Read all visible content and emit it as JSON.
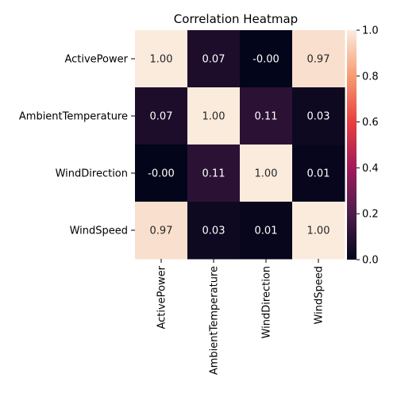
{
  "chart_data": {
    "type": "heatmap",
    "title": "Correlation Heatmap",
    "variables": [
      "ActivePower",
      "AmbientTemperature",
      "WindDirection",
      "WindSpeed"
    ],
    "values": [
      [
        1.0,
        0.07,
        -0.0,
        0.97
      ],
      [
        0.07,
        1.0,
        0.11,
        0.03
      ],
      [
        -0.0,
        0.11,
        1.0,
        0.01
      ],
      [
        0.97,
        0.03,
        0.01,
        1.0
      ]
    ],
    "annotations": [
      [
        "1.00",
        "0.07",
        "-0.00",
        "0.97"
      ],
      [
        "0.07",
        "1.00",
        "0.11",
        "0.03"
      ],
      [
        "-0.00",
        "0.11",
        "1.00",
        "0.01"
      ],
      [
        "0.97",
        "0.03",
        "0.01",
        "1.00"
      ]
    ],
    "colorbar": {
      "range": [
        0.0,
        1.0
      ],
      "ticks": [
        "0.0",
        "0.2",
        "0.4",
        "0.6",
        "0.8",
        "1.0"
      ],
      "colormap": "rocket",
      "colormap_stops": [
        "#03051a",
        "#4c1d4b",
        "#a11a5b",
        "#e83f3f",
        "#f69c73",
        "#faebdd"
      ]
    },
    "xlabel": "",
    "ylabel": ""
  }
}
